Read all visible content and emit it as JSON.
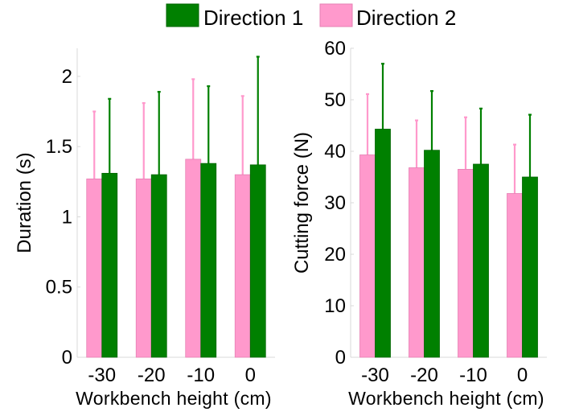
{
  "legend": {
    "items": [
      {
        "label": "Direction 1",
        "color": "#008000"
      },
      {
        "label": "Direction 2",
        "color": "#ff99cc"
      }
    ]
  },
  "chart_data": [
    {
      "type": "bar",
      "title": "",
      "categories": [
        "-30",
        "-20",
        "-10",
        "0"
      ],
      "xlabel": "Workbench height (cm)",
      "ylabel": "Duration (s)",
      "ylim": [
        0,
        2.2
      ],
      "yticks": [
        0,
        0.5,
        1,
        1.5,
        2
      ],
      "ytick_labels": [
        "0",
        "0.5",
        "1",
        "1.5",
        "2"
      ],
      "grid": false,
      "legend_position": "top",
      "series": [
        {
          "name": "Direction 2",
          "color": "#ff99cc",
          "values": [
            1.27,
            1.27,
            1.41,
            1.3
          ],
          "error": [
            0.48,
            0.54,
            0.57,
            0.56
          ]
        },
        {
          "name": "Direction 1",
          "color": "#008000",
          "values": [
            1.31,
            1.3,
            1.38,
            1.37
          ],
          "error": [
            0.53,
            0.59,
            0.55,
            0.77
          ]
        }
      ]
    },
    {
      "type": "bar",
      "title": "",
      "categories": [
        "-30",
        "-20",
        "-10",
        "0"
      ],
      "xlabel": "Workbench height (cm)",
      "ylabel": "Cutting force (N)",
      "ylim": [
        0,
        60
      ],
      "yticks": [
        0,
        10,
        20,
        30,
        40,
        50,
        60
      ],
      "ytick_labels": [
        "0",
        "10",
        "20",
        "30",
        "40",
        "50",
        "60"
      ],
      "grid": false,
      "legend_position": "top",
      "series": [
        {
          "name": "Direction 2",
          "color": "#ff99cc",
          "values": [
            39.3,
            36.8,
            36.5,
            31.8
          ],
          "error": [
            11.8,
            9.2,
            10.1,
            9.5
          ]
        },
        {
          "name": "Direction 1",
          "color": "#008000",
          "values": [
            44.3,
            40.2,
            37.5,
            35.0
          ],
          "error": [
            12.7,
            11.5,
            10.8,
            12.1
          ]
        }
      ]
    }
  ]
}
